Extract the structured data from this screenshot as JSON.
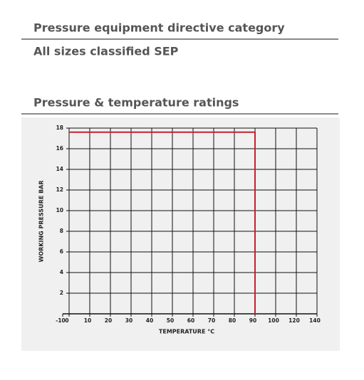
{
  "directive": {
    "heading": "Pressure equipment directive category",
    "text": "All sizes classified SEP"
  },
  "ratings": {
    "heading": "Pressure & temperature ratings"
  },
  "chart_data": {
    "type": "line",
    "xlabel": "TEMPERATURE °C",
    "ylabel": "WORKING PRESSURE BAR",
    "x": [
      0,
      90,
      90
    ],
    "values": [
      17.6,
      17.6,
      0
    ],
    "color": "#c8202f",
    "xlim": [
      -10,
      140
    ],
    "xticks": [
      -10,
      0,
      10,
      20,
      30,
      40,
      50,
      60,
      70,
      80,
      90,
      100,
      120,
      140
    ],
    "ylim": [
      0,
      18
    ],
    "yticks": [
      2,
      4,
      6,
      8,
      10,
      12,
      14,
      16,
      18
    ],
    "grid": true
  }
}
